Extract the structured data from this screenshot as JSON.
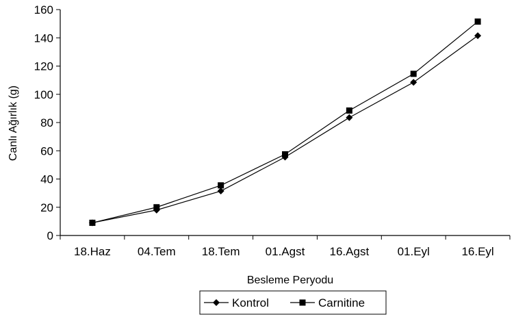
{
  "chart_data": {
    "type": "line",
    "title": "",
    "xlabel": "Besleme Peryodu",
    "ylabel": "Canlı Ağırlık (g)",
    "categories": [
      "18.Haz",
      "04.Tem",
      "18.Tem",
      "01.Agst",
      "16.Agst",
      "01.Eyl",
      "16.Eyl"
    ],
    "ylim": [
      0,
      160
    ],
    "yticks": [
      0,
      20,
      40,
      60,
      80,
      100,
      120,
      140,
      160
    ],
    "grid": false,
    "legend_position": "bottom",
    "series": [
      {
        "name": "Kontrol",
        "marker": "diamond",
        "color": "#000000",
        "values": [
          9,
          18,
          31.5,
          55.5,
          83.5,
          108.5,
          141.5
        ]
      },
      {
        "name": "Carnitine",
        "marker": "square",
        "color": "#000000",
        "values": [
          9,
          20,
          35.5,
          57.5,
          88.5,
          114.5,
          151.5
        ]
      }
    ]
  }
}
